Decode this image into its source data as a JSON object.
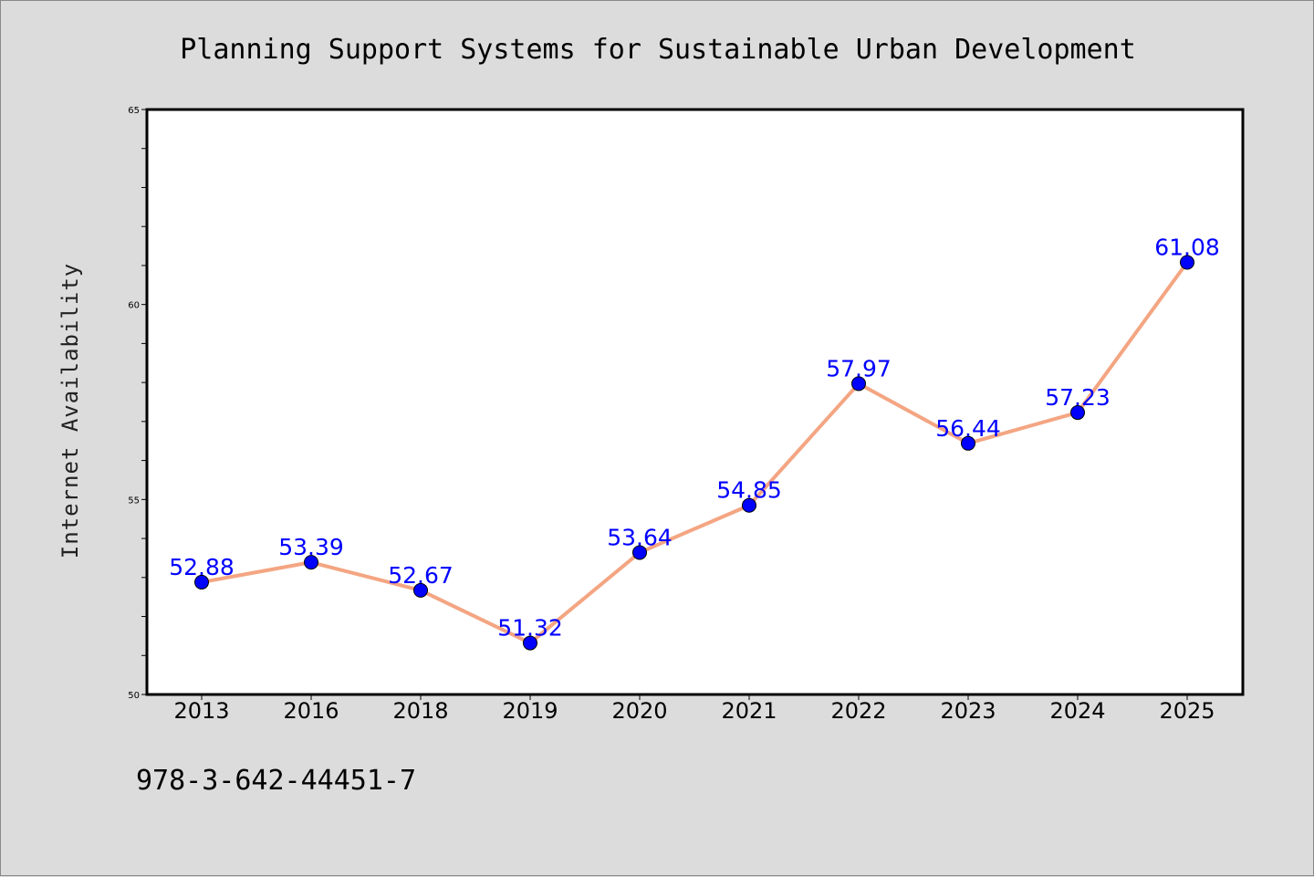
{
  "chart_data": {
    "type": "line",
    "title": "Planning Support Systems for Sustainable Urban Development",
    "ylabel": "Internet Availability",
    "xlabel": "",
    "categories": [
      "2013",
      "2016",
      "2018",
      "2019",
      "2020",
      "2021",
      "2022",
      "2023",
      "2024",
      "2025"
    ],
    "values": [
      52.88,
      53.39,
      52.67,
      51.32,
      53.64,
      54.85,
      57.97,
      56.44,
      57.23,
      61.08
    ],
    "data_labels": [
      "52.88",
      "53.39",
      "52.67",
      "51.32",
      "53.64",
      "54.85",
      "57.97",
      "56.44",
      "57.23",
      "61.08"
    ],
    "ylim": [
      50,
      65
    ],
    "yticks": [
      50,
      55,
      60,
      65
    ],
    "ytick_labels": [
      "50",
      "55",
      "60",
      "65"
    ],
    "grid": false,
    "legend": "none",
    "colors": {
      "line": "#f4a582",
      "marker": "#0000ff",
      "data_label": "#0000ff",
      "plot_background": "#ffffff",
      "page_background": "#dcdcdc"
    }
  },
  "footer": {
    "isbn": "978-3-642-44451-7"
  }
}
